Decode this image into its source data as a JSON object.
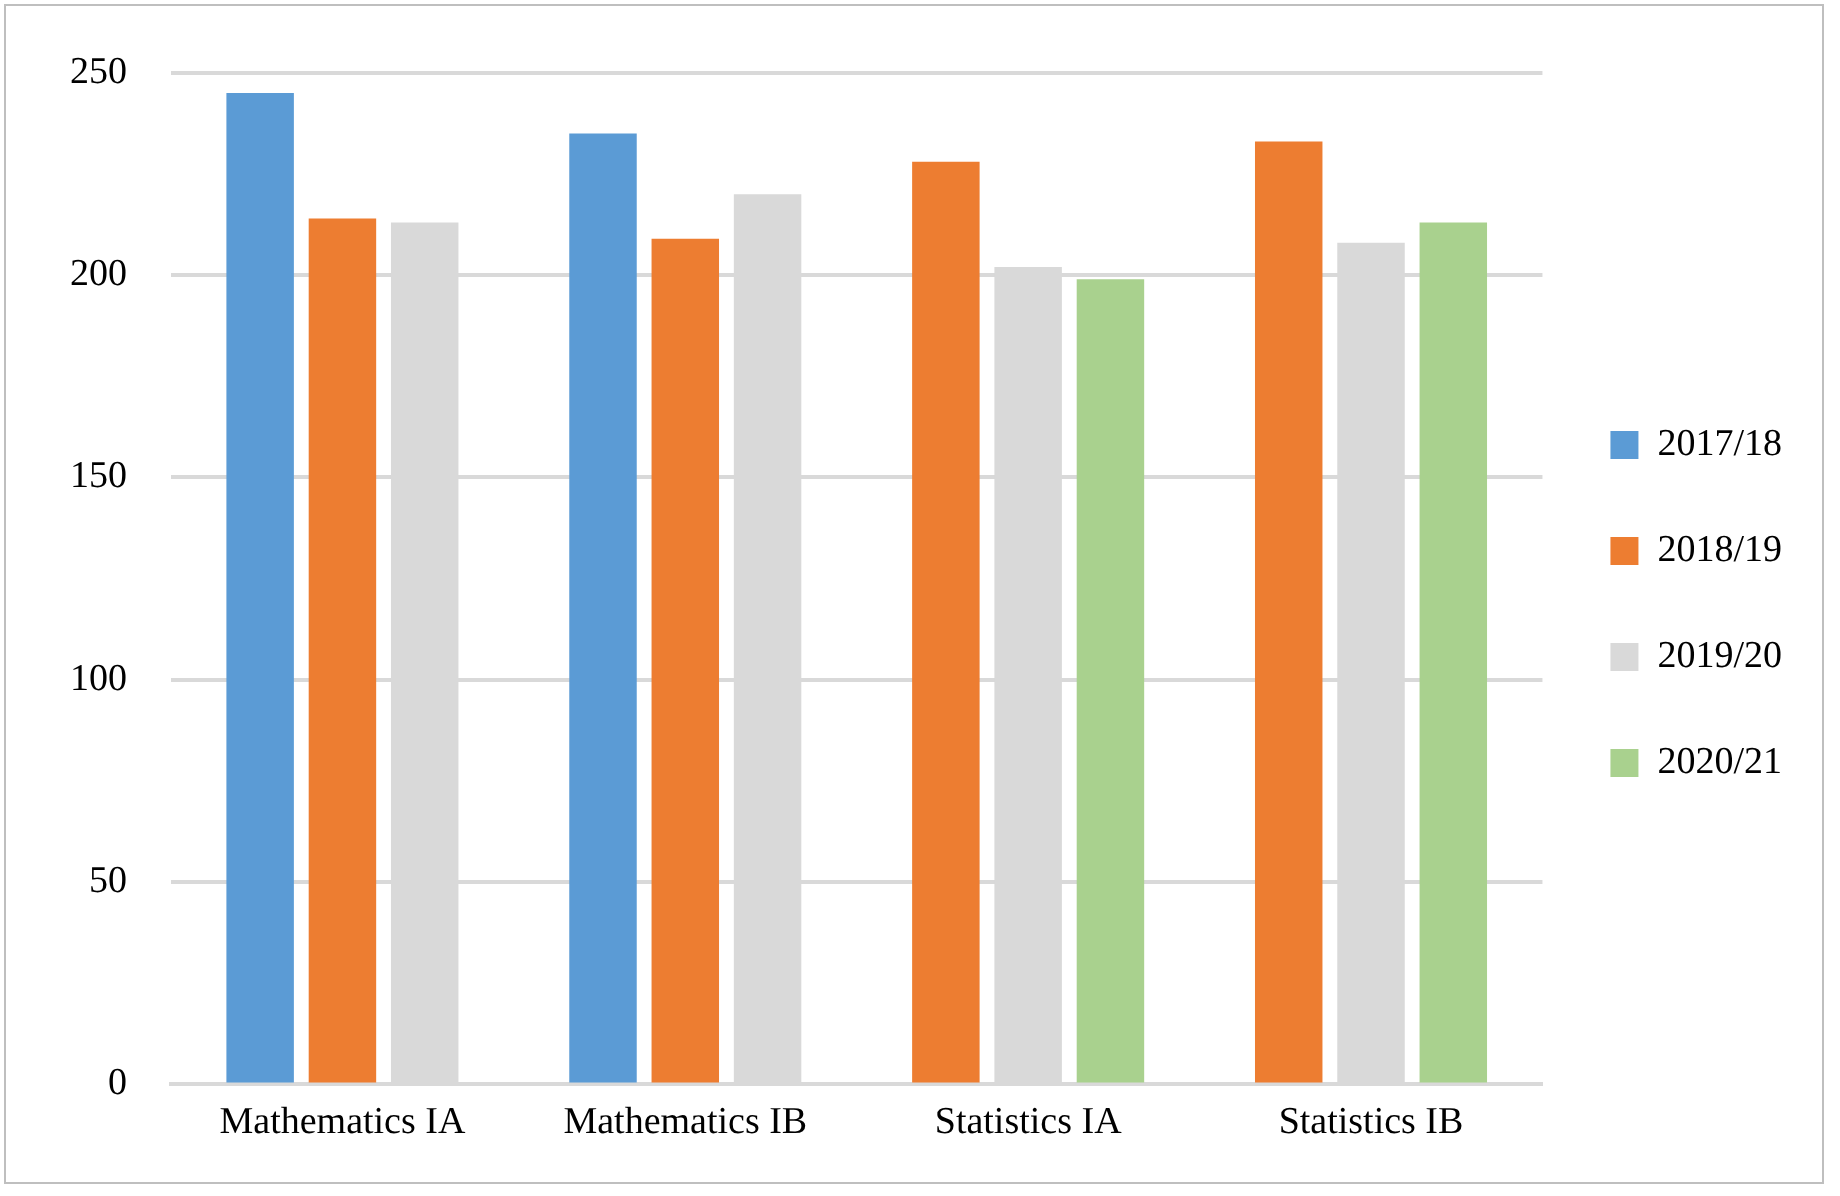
{
  "chart_data": {
    "type": "bar",
    "categories": [
      "Mathematics IA",
      "Mathematics IB",
      "Statistics IA",
      "Statistics IB"
    ],
    "series": [
      {
        "name": "2017/18",
        "color": "#5b9bd5",
        "values": [
          245,
          235,
          null,
          null
        ]
      },
      {
        "name": "2018/19",
        "color": "#ed7d31",
        "values": [
          214,
          209,
          228,
          233
        ]
      },
      {
        "name": "2019/20",
        "color": "#d9d9d9",
        "values": [
          213,
          220,
          202,
          208
        ]
      },
      {
        "name": "2020/21",
        "color": "#a9d18e",
        "values": [
          null,
          null,
          199,
          213
        ]
      }
    ],
    "ylim": [
      0,
      250
    ],
    "yticks": [
      0,
      50,
      100,
      150,
      200,
      250
    ],
    "grid": "y",
    "legend": "right"
  }
}
